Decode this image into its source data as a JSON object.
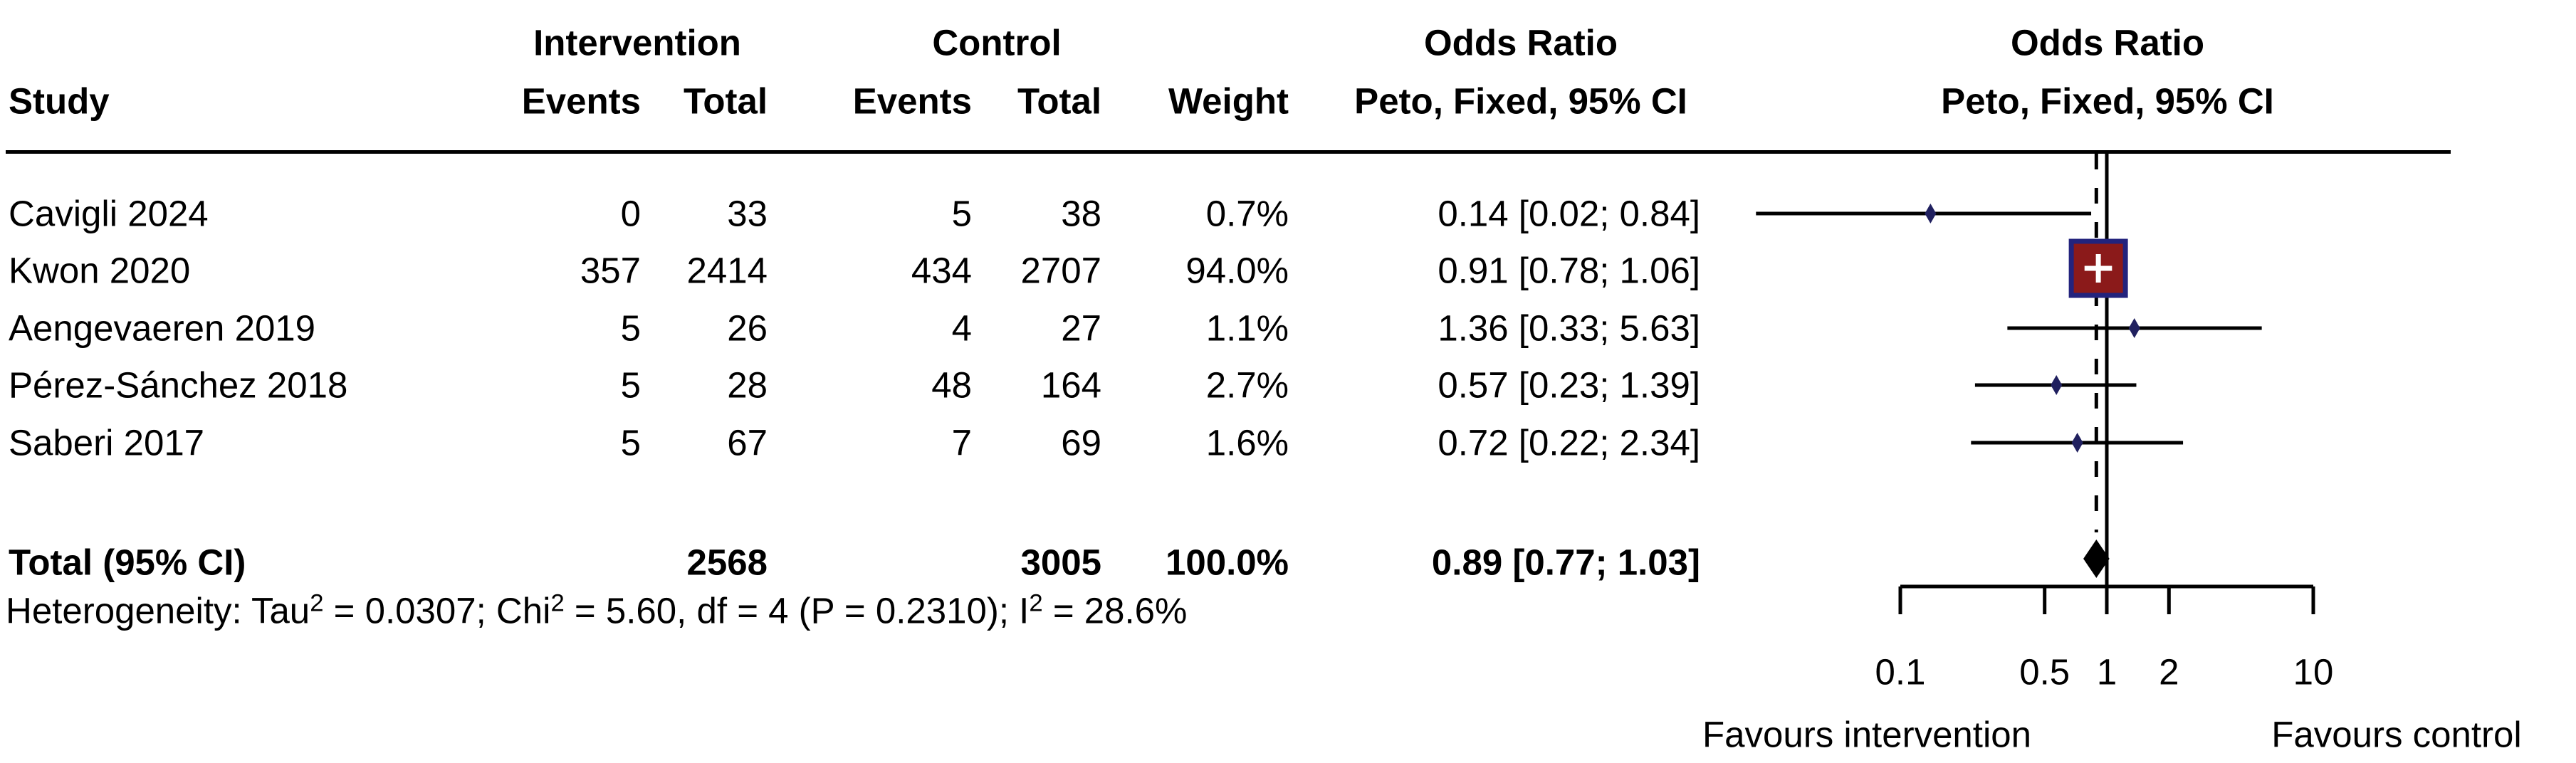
{
  "table": {
    "group_headers": {
      "intervention": "Intervention",
      "control": "Control",
      "odds_ratio": "Odds Ratio",
      "odds_ratio_plot": "Odds Ratio"
    },
    "col_headers": {
      "study": "Study",
      "iv_events": "Events",
      "iv_total": "Total",
      "c_events": "Events",
      "c_total": "Total",
      "weight": "Weight",
      "peto": "Peto, Fixed, 95% CI",
      "peto_plot": "Peto, Fixed, 95% CI"
    },
    "rows": [
      {
        "study": "Cavigli 2024",
        "iv_events": "0",
        "iv_total": "33",
        "c_events": "5",
        "c_total": "38",
        "weight": "0.7%",
        "or_ci": "0.14 [0.02; 0.84]"
      },
      {
        "study": "Kwon 2020",
        "iv_events": "357",
        "iv_total": "2414",
        "c_events": "434",
        "c_total": "2707",
        "weight": "94.0%",
        "or_ci": "0.91 [0.78; 1.06]"
      },
      {
        "study": "Aengevaeren 2019",
        "iv_events": "5",
        "iv_total": "26",
        "c_events": "4",
        "c_total": "27",
        "weight": "1.1%",
        "or_ci": "1.36 [0.33; 5.63]"
      },
      {
        "study": "Pérez-Sánchez 2018",
        "iv_events": "5",
        "iv_total": "28",
        "c_events": "48",
        "c_total": "164",
        "weight": "2.7%",
        "or_ci": "0.57 [0.23; 1.39]"
      },
      {
        "study": "Saberi 2017",
        "iv_events": "5",
        "iv_total": "67",
        "c_events": "7",
        "c_total": "69",
        "weight": "1.6%",
        "or_ci": "0.72 [0.22; 2.34]"
      }
    ],
    "total_row": {
      "label": "Total (95% CI)",
      "iv_total": "2568",
      "c_total": "3005",
      "weight": "100.0%",
      "or_ci": "0.89 [0.77; 1.03]"
    },
    "heterogeneity": {
      "p1": "Heterogeneity: Tau",
      "s1": "2",
      "p2": " = 0.0307; Chi",
      "s2": "2",
      "p3": " = 5.60, df = 4 (P = 0.2310); I",
      "s3": "2",
      "p4": " = 28.6%"
    }
  },
  "chart_data": {
    "type": "forest",
    "scale": "log10",
    "x_axis": {
      "ticks": [
        0.1,
        0.5,
        1,
        2,
        10
      ],
      "tick_labels": [
        "0.1",
        "0.5",
        "1",
        "2",
        "10"
      ],
      "range": [
        0.1,
        10
      ],
      "reference_line": 1,
      "pooled_dashed_line": 0.89
    },
    "studies": [
      {
        "name": "Cavigli 2024",
        "or": 0.14,
        "ci_low": 0.02,
        "ci_high": 0.84,
        "weight_pct": 0.7,
        "marker": "diamond"
      },
      {
        "name": "Kwon 2020",
        "or": 0.91,
        "ci_low": 0.78,
        "ci_high": 1.06,
        "weight_pct": 94.0,
        "marker": "square"
      },
      {
        "name": "Aengevaeren 2019",
        "or": 1.36,
        "ci_low": 0.33,
        "ci_high": 5.63,
        "weight_pct": 1.1,
        "marker": "diamond"
      },
      {
        "name": "Pérez-Sánchez 2018",
        "or": 0.57,
        "ci_low": 0.23,
        "ci_high": 1.39,
        "weight_pct": 2.7,
        "marker": "diamond"
      },
      {
        "name": "Saberi 2017",
        "or": 0.72,
        "ci_low": 0.22,
        "ci_high": 2.34,
        "weight_pct": 1.6,
        "marker": "diamond"
      }
    ],
    "pooled": {
      "or": 0.89,
      "ci_low": 0.77,
      "ci_high": 1.03
    },
    "footer_left": "Favours intervention",
    "footer_right": "Favours control",
    "colors": {
      "square_fill": "#8B1A1A",
      "square_border": "#23237D",
      "square_ci": "#FFFFFF",
      "study_marker": "#20205F",
      "pooled_diamond": "#000000",
      "line": "#000000"
    }
  }
}
